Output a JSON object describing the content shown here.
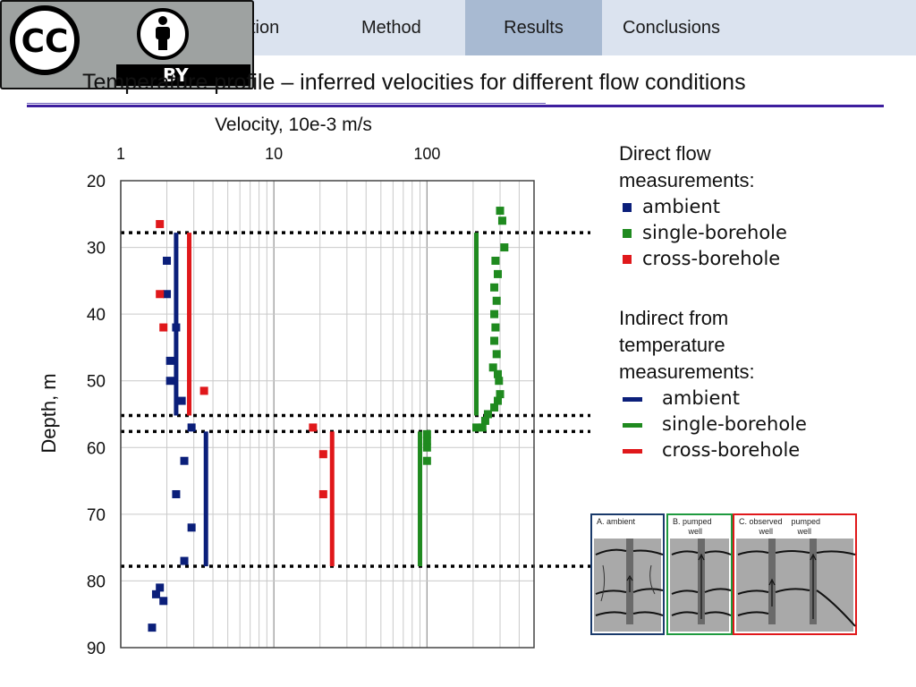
{
  "nav": {
    "items": [
      {
        "label": "ction",
        "active": false
      },
      {
        "label": "Method",
        "active": false
      },
      {
        "label": "Results",
        "active": true
      },
      {
        "label": "Conclusions",
        "active": false
      }
    ]
  },
  "license_badge": {
    "text": "BY",
    "icons": [
      "cc-icon",
      "person-icon"
    ]
  },
  "slide": {
    "title": "Temperature profile – inferred velocities for different flow conditions"
  },
  "legend": {
    "direct_heading": "Direct flow measurements:",
    "direct_items": [
      {
        "label": "ambient",
        "color": "#0b1f7a"
      },
      {
        "label": "single-borehole",
        "color": "#1f8a1f"
      },
      {
        "label": "cross-borehole",
        "color": "#e0181b"
      }
    ],
    "indirect_heading": "Indirect from temperature measurements:",
    "indirect_items": [
      {
        "label": "ambient",
        "color": "#0b1f7a"
      },
      {
        "label": "single-borehole",
        "color": "#1f8a1f"
      },
      {
        "label": "cross-borehole",
        "color": "#e0181b"
      }
    ]
  },
  "insets": [
    {
      "label": "A. ambient",
      "color": "#1a3a6b"
    },
    {
      "label": "B. pumped\n       well",
      "color": "#1f9a3f"
    },
    {
      "label": "C. observed    pumped\n         well           well",
      "color": "#e0181b"
    }
  ],
  "chart_data": {
    "type": "scatter",
    "title": "",
    "xlabel": "Velocity, 10e-3 m/s",
    "ylabel": "Depth, m",
    "x_scale": "log",
    "xlim": [
      1,
      500
    ],
    "ylim": [
      90,
      20
    ],
    "x_ticks": [
      1,
      10,
      100
    ],
    "x_tick_labels": [
      "1",
      "10",
      "100"
    ],
    "y_ticks": [
      20,
      30,
      40,
      50,
      60,
      70,
      80,
      90
    ],
    "y_tick_labels": [
      "20",
      "30",
      "40",
      "50",
      "60",
      "70",
      "80",
      "90"
    ],
    "grid": true,
    "boundaries_depth": [
      27.8,
      55.2,
      57.6,
      77.8
    ],
    "points": [
      {
        "name": "ambient (direct)",
        "color": "#0b1f7a",
        "data": [
          [
            2.0,
            32
          ],
          [
            2.0,
            37
          ],
          [
            2.3,
            42
          ],
          [
            2.1,
            47
          ],
          [
            2.1,
            50
          ],
          [
            2.5,
            53
          ],
          [
            2.9,
            57
          ],
          [
            2.6,
            62
          ],
          [
            2.3,
            67
          ],
          [
            2.9,
            72
          ],
          [
            2.6,
            77
          ],
          [
            1.8,
            81
          ],
          [
            1.7,
            82
          ],
          [
            1.9,
            83
          ],
          [
            1.6,
            87
          ]
        ]
      },
      {
        "name": "single-borehole (direct)",
        "color": "#1f8a1f",
        "data": [
          [
            300,
            24.5
          ],
          [
            310,
            26
          ],
          [
            320,
            30
          ],
          [
            280,
            32
          ],
          [
            290,
            34
          ],
          [
            275,
            36
          ],
          [
            285,
            38
          ],
          [
            275,
            40
          ],
          [
            280,
            42
          ],
          [
            275,
            44
          ],
          [
            285,
            46
          ],
          [
            270,
            48
          ],
          [
            290,
            49
          ],
          [
            295,
            50
          ],
          [
            300,
            52
          ],
          [
            290,
            53
          ],
          [
            275,
            54
          ],
          [
            250,
            55
          ],
          [
            240,
            56
          ],
          [
            230,
            57
          ],
          [
            210,
            57
          ],
          [
            100,
            58
          ],
          [
            100,
            59
          ],
          [
            100,
            60
          ],
          [
            100,
            62
          ]
        ]
      },
      {
        "name": "cross-borehole (direct)",
        "color": "#e0181b",
        "data": [
          [
            1.8,
            26.5
          ],
          [
            1.8,
            37
          ],
          [
            1.9,
            42
          ],
          [
            3.5,
            51.5
          ],
          [
            18,
            57
          ],
          [
            21,
            61
          ],
          [
            21,
            67
          ]
        ]
      }
    ],
    "lines": [
      {
        "name": "ambient (temperature)",
        "color": "#0b1f7a",
        "segments": [
          [
            2.3,
            27.8,
            55.2
          ],
          [
            3.6,
            57.6,
            77.8
          ]
        ]
      },
      {
        "name": "single-borehole (temperature)",
        "color": "#1f8a1f",
        "segments": [
          [
            210,
            27.8,
            55.2
          ],
          [
            90,
            57.6,
            77.8
          ]
        ]
      },
      {
        "name": "cross-borehole (temperature)",
        "color": "#e0181b",
        "segments": [
          [
            2.8,
            27.8,
            55.2
          ],
          [
            24,
            57.6,
            77.8
          ]
        ]
      }
    ]
  }
}
